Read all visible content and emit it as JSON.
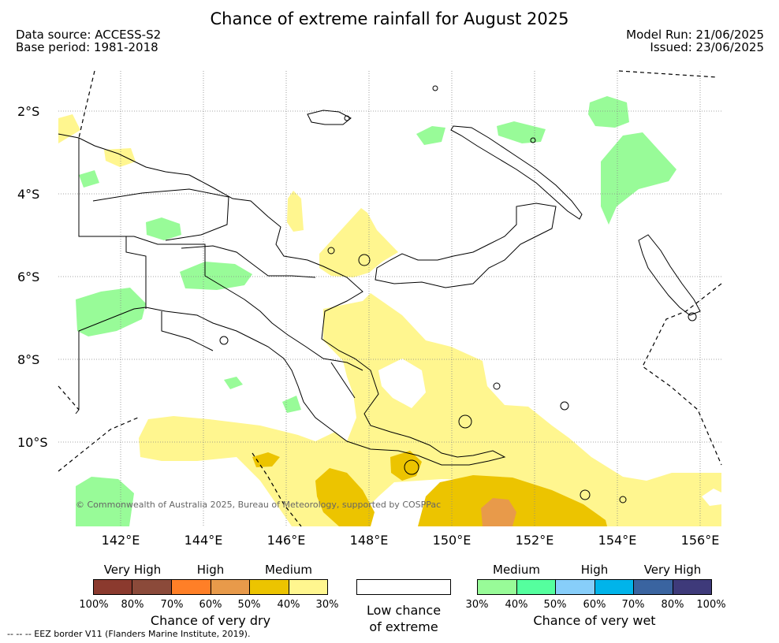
{
  "title": "Chance of extreme rainfall for August 2025",
  "meta": {
    "data_source": "Data source: ACCESS-S2",
    "base_period": "Base period: 1981-2018",
    "model_run": "Model Run: 21/06/2025",
    "issued": "Issued: 23/06/2025"
  },
  "map": {
    "lat_labels": [
      "2°S",
      "4°S",
      "6°S",
      "8°S",
      "10°S"
    ],
    "lon_labels": [
      "142°E",
      "144°E",
      "146°E",
      "148°E",
      "150°E",
      "152°E",
      "154°E",
      "156°E"
    ],
    "copyright": "© Commonwealth of Australia 2025, Bureau of Meteorology, supported by COSPPac",
    "colors": {
      "dry_30": "#fff68f",
      "dry_40": "#ecc400",
      "dry_50": "#e89a4a",
      "wet_30": "#98fb98",
      "border": "#000000"
    }
  },
  "legend": {
    "dry": {
      "levels": [
        "Very High",
        "High",
        "Medium"
      ],
      "ticks": [
        "100%",
        "80%",
        "70%",
        "60%",
        "50%",
        "40%",
        "30%"
      ],
      "colors": [
        "#8b3a2e",
        "#8b4a3a",
        "#ff7f27",
        "#e89a4a",
        "#ecc400",
        "#fff68f"
      ],
      "caption": "Chance of very dry"
    },
    "low": {
      "caption_line1": "Low chance",
      "caption_line2": "of extreme",
      "color": "#ffffff"
    },
    "wet": {
      "levels": [
        "Medium",
        "High",
        "Very High"
      ],
      "ticks": [
        "30%",
        "40%",
        "50%",
        "60%",
        "70%",
        "80%",
        "100%"
      ],
      "colors": [
        "#98fb98",
        "#55ff9e",
        "#87cefa",
        "#00b4ea",
        "#3a64a0",
        "#3e3a7a"
      ],
      "caption": "Chance of very wet"
    }
  },
  "footnote": "--  --  -- EEZ border V11 (Flanders Marine Institute, 2019)."
}
